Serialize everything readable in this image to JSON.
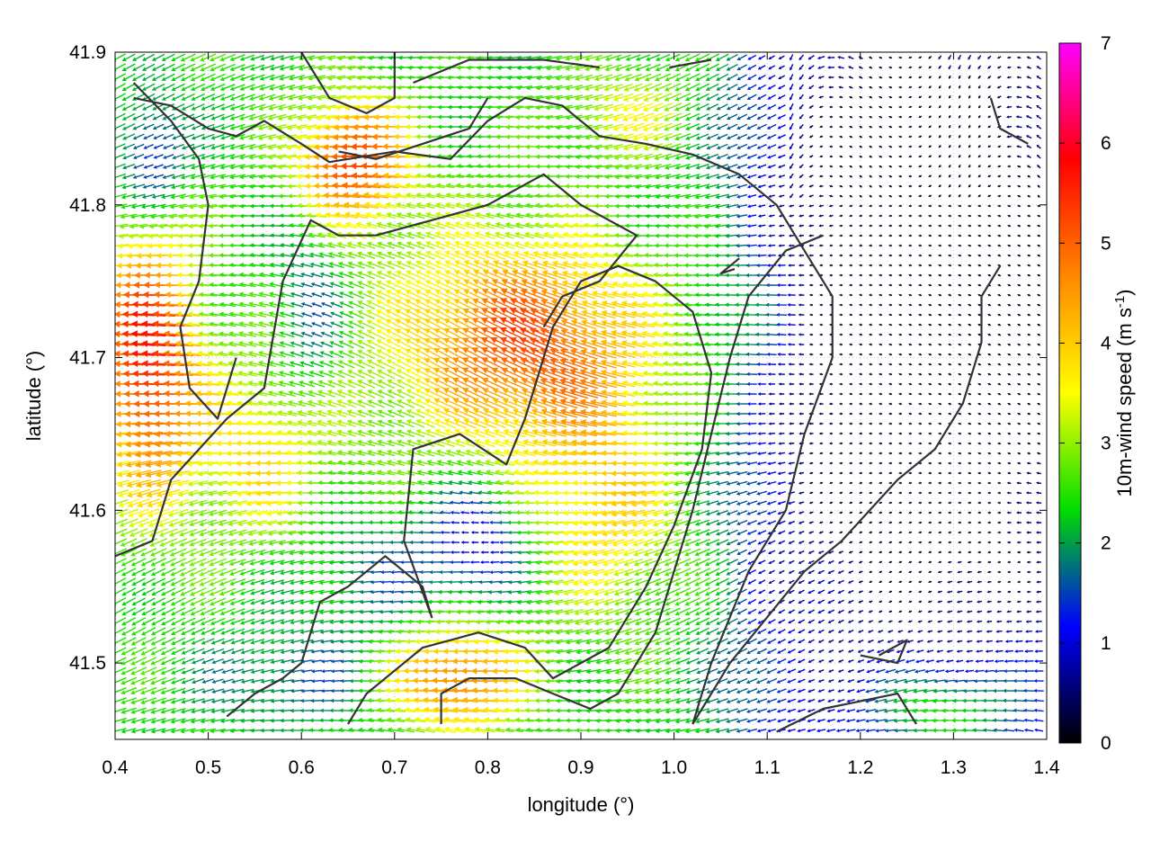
{
  "chart_data": {
    "type": "quiver",
    "xlabel": "longitude (°)",
    "ylabel": "latitude (°)",
    "xlim": [
      0.4,
      1.4
    ],
    "ylim": [
      41.45,
      41.9
    ],
    "x_ticks": [
      "0.4",
      "0.5",
      "0.6",
      "0.7",
      "0.8",
      "0.9",
      "1.0",
      "1.1",
      "1.2",
      "1.3",
      "1.4"
    ],
    "y_ticks": [
      "41.5",
      "41.6",
      "41.7",
      "41.8",
      "41.9"
    ],
    "x_tick_values": [
      0.4,
      0.5,
      0.6,
      0.7,
      0.8,
      0.9,
      1.0,
      1.1,
      1.2,
      1.3,
      1.4
    ],
    "y_tick_values": [
      41.5,
      41.6,
      41.7,
      41.8,
      41.9
    ],
    "colorbar": {
      "label_main": "10m-wind speed (m s",
      "label_sup": "-1",
      "label_end": ")",
      "range": [
        0,
        7
      ],
      "ticks": [
        "0",
        "1",
        "2",
        "3",
        "4",
        "5",
        "6",
        "7"
      ],
      "tick_values": [
        0,
        1,
        2,
        3,
        4,
        5,
        6,
        7
      ],
      "colormap_stops": [
        "#000000",
        "#0000ff",
        "#00dd00",
        "#ffff00",
        "#ff8800",
        "#ff0000",
        "#ff00ff"
      ]
    },
    "grid": "dotted",
    "vector_field": {
      "direction": "predominantly westward (arrows point west, some WSW/WNW)",
      "regions": [
        {
          "area": "west coast 0.40-0.48, 41.60-41.78",
          "speed": 5.6
        },
        {
          "area": "central plain 0.70-0.95, 41.63-41.78",
          "speed": 5.0
        },
        {
          "area": "north 0.60-0.70, 41.79-41.86",
          "speed": 5.2
        },
        {
          "area": "south-central 0.72-0.80, 41.47-41.52",
          "speed": 5.0
        },
        {
          "area": "basin 0.76-0.81, 41.56-41.61",
          "speed": 1.7
        },
        {
          "area": "east 1.10-1.40, 41.55-41.90",
          "speed": 0.7
        },
        {
          "area": "east-central 1.03-1.15, 41.70-41.76",
          "speed": 1.8
        }
      ]
    },
    "contours": [
      [
        [
          0.42,
          41.87
        ],
        [
          0.46,
          41.865
        ],
        [
          0.5,
          41.85
        ],
        [
          0.53,
          41.845
        ],
        [
          0.56,
          41.855
        ],
        [
          0.6,
          41.84
        ],
        [
          0.63,
          41.828
        ],
        [
          0.7,
          41.835
        ],
        [
          0.76,
          41.83
        ],
        [
          0.8,
          41.855
        ],
        [
          0.84,
          41.87
        ],
        [
          0.88,
          41.865
        ],
        [
          0.92,
          41.845
        ],
        [
          0.97,
          41.84
        ],
        [
          1.02,
          41.833
        ],
        [
          1.07,
          41.82
        ],
        [
          1.11,
          41.8
        ],
        [
          1.14,
          41.77
        ],
        [
          1.17,
          41.74
        ],
        [
          1.17,
          41.7
        ],
        [
          1.14,
          41.65
        ],
        [
          1.12,
          41.6
        ],
        [
          1.08,
          41.56
        ],
        [
          1.04,
          41.5
        ],
        [
          1.02,
          41.46
        ]
      ],
      [
        [
          0.52,
          41.465
        ],
        [
          0.55,
          41.48
        ],
        [
          0.58,
          41.49
        ],
        [
          0.6,
          41.5
        ],
        [
          0.62,
          41.54
        ],
        [
          0.65,
          41.55
        ],
        [
          0.69,
          41.57
        ],
        [
          0.73,
          41.55
        ],
        [
          0.74,
          41.53
        ],
        [
          0.71,
          41.58
        ],
        [
          0.72,
          41.64
        ],
        [
          0.77,
          41.65
        ],
        [
          0.82,
          41.63
        ],
        [
          0.84,
          41.66
        ],
        [
          0.86,
          41.7
        ],
        [
          0.87,
          41.72
        ],
        [
          0.9,
          41.75
        ],
        [
          0.94,
          41.76
        ],
        [
          0.98,
          41.75
        ],
        [
          1.02,
          41.73
        ],
        [
          1.04,
          41.69
        ],
        [
          1.03,
          41.64
        ],
        [
          1.0,
          41.59
        ],
        [
          0.97,
          41.55
        ],
        [
          0.93,
          41.51
        ],
        [
          0.87,
          41.49
        ],
        [
          0.84,
          41.51
        ],
        [
          0.79,
          41.52
        ],
        [
          0.73,
          41.51
        ],
        [
          0.67,
          41.48
        ],
        [
          0.65,
          41.46
        ]
      ],
      [
        [
          0.4,
          41.57
        ],
        [
          0.44,
          41.58
        ],
        [
          0.46,
          41.62
        ],
        [
          0.52,
          41.66
        ],
        [
          0.56,
          41.68
        ],
        [
          0.58,
          41.75
        ],
        [
          0.61,
          41.79
        ],
        [
          0.64,
          41.78
        ],
        [
          0.68,
          41.78
        ],
        [
          0.74,
          41.79
        ],
        [
          0.8,
          41.8
        ],
        [
          0.86,
          41.82
        ],
        [
          0.9,
          41.8
        ],
        [
          0.96,
          41.78
        ],
        [
          0.92,
          41.75
        ],
        [
          0.88,
          41.74
        ],
        [
          0.86,
          41.72
        ]
      ],
      [
        [
          0.42,
          41.88
        ],
        [
          0.46,
          41.855
        ],
        [
          0.49,
          41.83
        ],
        [
          0.5,
          41.8
        ],
        [
          0.49,
          41.75
        ],
        [
          0.47,
          41.72
        ],
        [
          0.48,
          41.68
        ],
        [
          0.51,
          41.66
        ],
        [
          0.53,
          41.7
        ]
      ],
      [
        [
          0.6,
          41.9
        ],
        [
          0.63,
          41.87
        ],
        [
          0.67,
          41.86
        ],
        [
          0.7,
          41.87
        ],
        [
          0.7,
          41.9
        ]
      ],
      [
        [
          0.64,
          41.835
        ],
        [
          0.68,
          41.83
        ],
        [
          0.73,
          41.84
        ],
        [
          0.78,
          41.85
        ],
        [
          0.8,
          41.87
        ]
      ],
      [
        [
          0.72,
          41.88
        ],
        [
          0.78,
          41.895
        ],
        [
          0.86,
          41.895
        ],
        [
          0.92,
          41.89
        ]
      ],
      [
        [
          0.75,
          41.46
        ],
        [
          0.75,
          41.48
        ],
        [
          0.78,
          41.49
        ],
        [
          0.83,
          41.49
        ],
        [
          0.87,
          41.48
        ],
        [
          0.91,
          41.47
        ],
        [
          0.94,
          41.48
        ],
        [
          0.98,
          41.52
        ],
        [
          1.0,
          41.56
        ],
        [
          1.02,
          41.6
        ],
        [
          1.04,
          41.65
        ],
        [
          1.06,
          41.7
        ],
        [
          1.08,
          41.74
        ],
        [
          1.12,
          41.77
        ],
        [
          1.16,
          41.78
        ]
      ],
      [
        [
          1.11,
          41.455
        ],
        [
          1.16,
          41.47
        ],
        [
          1.2,
          41.475
        ],
        [
          1.24,
          41.48
        ],
        [
          1.26,
          41.46
        ]
      ],
      [
        [
          1.2,
          41.505
        ],
        [
          1.24,
          41.5
        ],
        [
          1.25,
          41.515
        ],
        [
          1.22,
          41.505
        ]
      ],
      [
        [
          1.02,
          41.46
        ],
        [
          1.06,
          41.5
        ],
        [
          1.1,
          41.53
        ],
        [
          1.14,
          41.56
        ],
        [
          1.18,
          41.58
        ],
        [
          1.21,
          41.6
        ],
        [
          1.24,
          41.62
        ],
        [
          1.28,
          41.64
        ],
        [
          1.31,
          41.67
        ],
        [
          1.33,
          41.71
        ],
        [
          1.33,
          41.74
        ],
        [
          1.35,
          41.76
        ]
      ],
      [
        [
          1.34,
          41.87
        ],
        [
          1.35,
          41.85
        ],
        [
          1.38,
          41.84
        ]
      ],
      [
        [
          0.995,
          41.89
        ],
        [
          1.04,
          41.895
        ]
      ],
      [
        [
          1.07,
          41.765
        ],
        [
          1.06,
          41.76
        ],
        [
          1.05,
          41.755
        ],
        [
          1.065,
          41.758
        ]
      ]
    ]
  }
}
